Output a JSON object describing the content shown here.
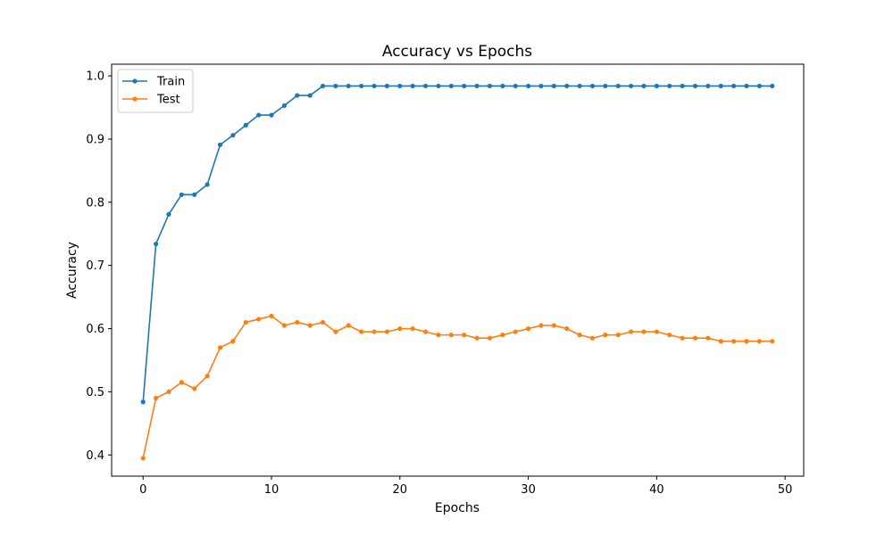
{
  "chart_data": {
    "type": "line",
    "title": "Accuracy vs Epochs",
    "xlabel": "Epochs",
    "ylabel": "Accuracy",
    "xlim": [
      -2.45,
      51.45
    ],
    "ylim": [
      0.3665,
      1.0185
    ],
    "xticks": [
      0,
      10,
      20,
      30,
      40,
      50
    ],
    "yticks": [
      0.4,
      0.5,
      0.6,
      0.7,
      0.8,
      0.9,
      1.0
    ],
    "ytick_labels": [
      "0.4",
      "0.5",
      "0.6",
      "0.7",
      "0.8",
      "0.9",
      "1.0"
    ],
    "grid": false,
    "legend": "upper-left",
    "x": [
      0,
      1,
      2,
      3,
      4,
      5,
      6,
      7,
      8,
      9,
      10,
      11,
      12,
      13,
      14,
      15,
      16,
      17,
      18,
      19,
      20,
      21,
      22,
      23,
      24,
      25,
      26,
      27,
      28,
      29,
      30,
      31,
      32,
      33,
      34,
      35,
      36,
      37,
      38,
      39,
      40,
      41,
      42,
      43,
      44,
      45,
      46,
      47,
      48,
      49
    ],
    "series": [
      {
        "name": "Train",
        "color": "#1f77b4",
        "values": [
          0.484,
          0.734,
          0.781,
          0.812,
          0.812,
          0.828,
          0.891,
          0.906,
          0.922,
          0.938,
          0.938,
          0.953,
          0.969,
          0.969,
          0.984,
          0.984,
          0.984,
          0.984,
          0.984,
          0.984,
          0.984,
          0.984,
          0.984,
          0.984,
          0.984,
          0.984,
          0.984,
          0.984,
          0.984,
          0.984,
          0.984,
          0.984,
          0.984,
          0.984,
          0.984,
          0.984,
          0.984,
          0.984,
          0.984,
          0.984,
          0.984,
          0.984,
          0.984,
          0.984,
          0.984,
          0.984,
          0.984,
          0.984,
          0.984,
          0.984
        ]
      },
      {
        "name": "Test",
        "color": "#ff7f0e",
        "values": [
          0.395,
          0.49,
          0.5,
          0.515,
          0.505,
          0.525,
          0.57,
          0.58,
          0.61,
          0.615,
          0.62,
          0.605,
          0.61,
          0.605,
          0.61,
          0.595,
          0.605,
          0.595,
          0.595,
          0.595,
          0.6,
          0.6,
          0.595,
          0.59,
          0.59,
          0.59,
          0.585,
          0.585,
          0.59,
          0.595,
          0.6,
          0.605,
          0.605,
          0.6,
          0.59,
          0.585,
          0.59,
          0.59,
          0.595,
          0.595,
          0.595,
          0.59,
          0.585,
          0.585,
          0.585,
          0.58,
          0.58,
          0.58,
          0.58,
          0.58
        ]
      }
    ]
  }
}
